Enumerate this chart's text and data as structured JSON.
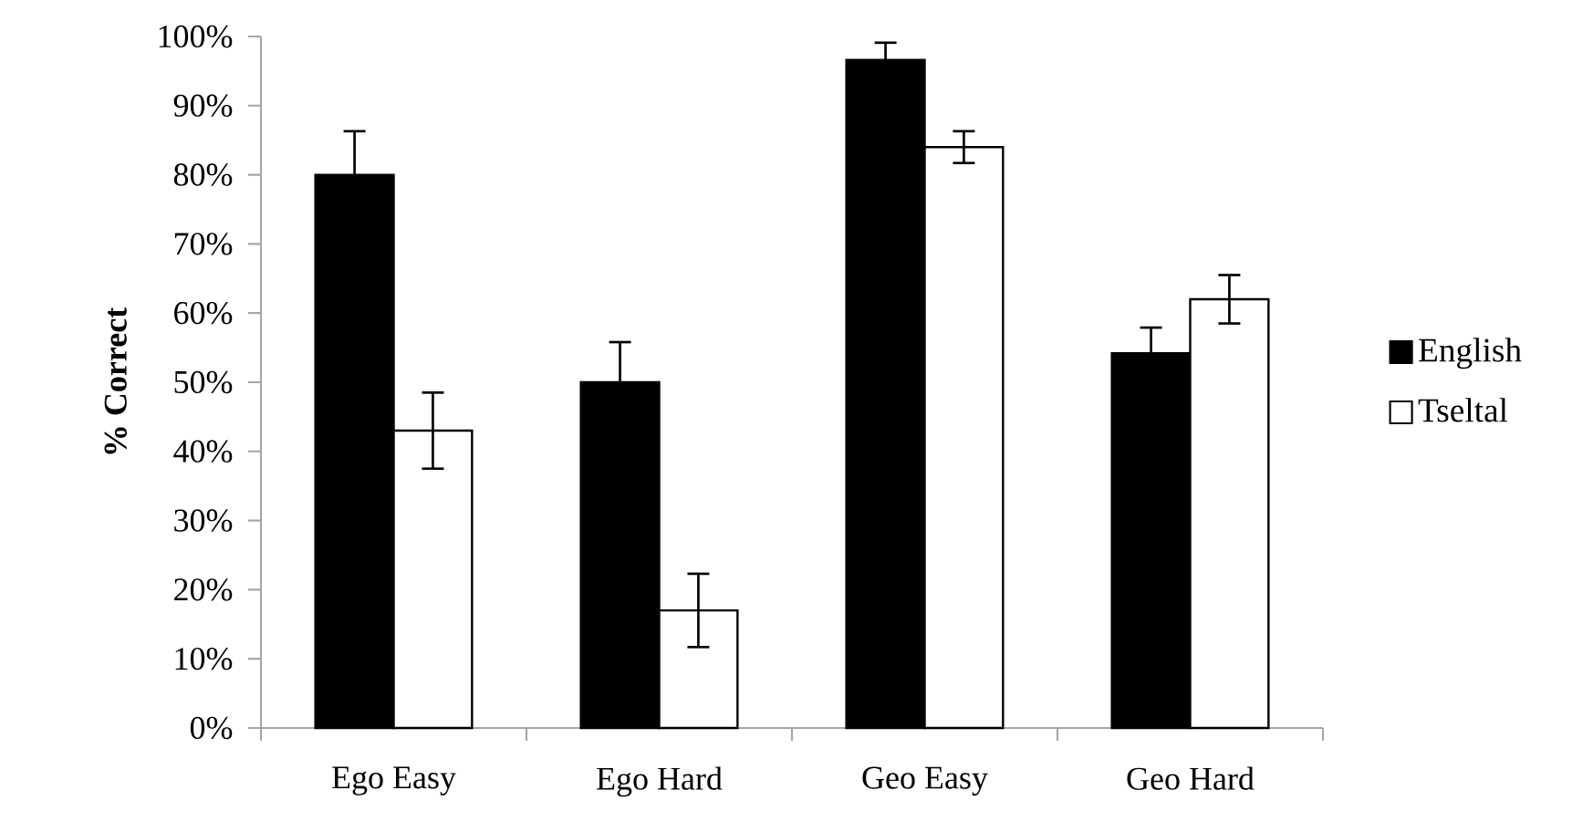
{
  "chart_data": {
    "type": "bar",
    "ylabel": "% Correct",
    "categories": [
      "Ego Easy",
      "Ego Hard",
      "Geo Easy",
      "Geo Hard"
    ],
    "series": [
      {
        "name": "English",
        "color": "#000000",
        "values": [
          80,
          50,
          96.6,
          54.2
        ],
        "errors": [
          6.3,
          5.8,
          2.5,
          3.7
        ]
      },
      {
        "name": "Tseltal",
        "color": "#ffffff",
        "values": [
          43,
          17,
          84,
          62
        ],
        "errors": [
          5.5,
          5.3,
          2.3,
          3.5
        ]
      }
    ],
    "ylim": [
      0,
      100
    ],
    "yticks": [
      {
        "value": 0,
        "label": "0%"
      },
      {
        "value": 10,
        "label": "10%"
      },
      {
        "value": 20,
        "label": "20%"
      },
      {
        "value": 30,
        "label": "30%"
      },
      {
        "value": 40,
        "label": "40%"
      },
      {
        "value": 50,
        "label": "50%"
      },
      {
        "value": 60,
        "label": "60%"
      },
      {
        "value": 70,
        "label": "70%"
      },
      {
        "value": 80,
        "label": "80%"
      },
      {
        "value": 90,
        "label": "90%"
      },
      {
        "value": 100,
        "label": "100%"
      }
    ],
    "grid": false,
    "legend": "right"
  }
}
